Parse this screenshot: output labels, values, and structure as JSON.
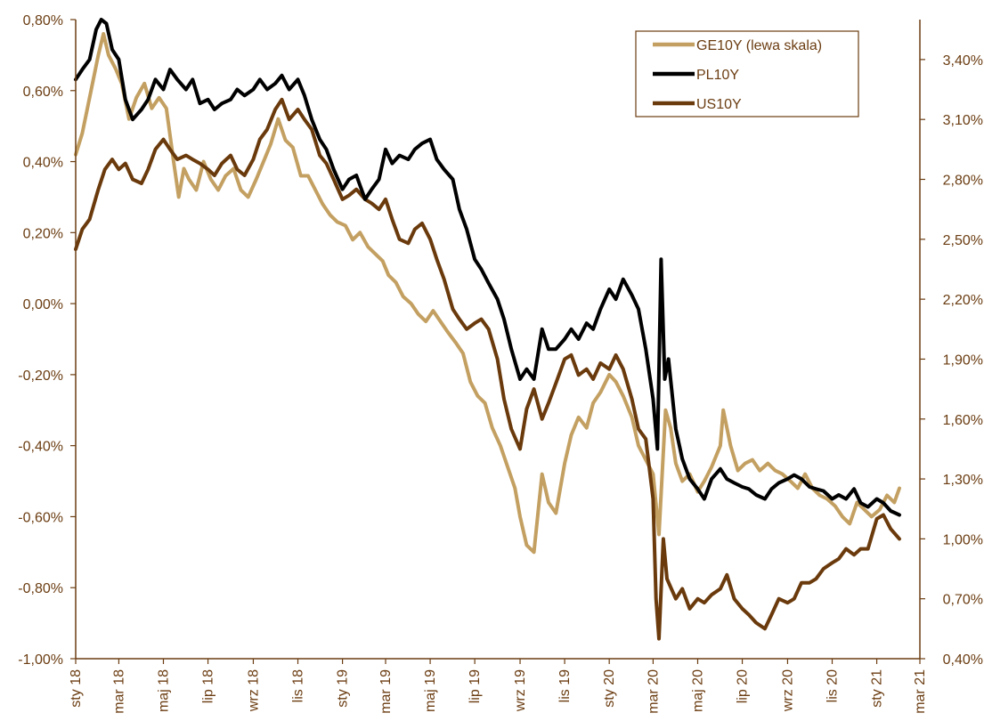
{
  "chart_data": {
    "type": "line",
    "title": "",
    "xlabel": "",
    "ylabel": "",
    "colors": {
      "GE10Y": "#c3a062",
      "PL10Y": "#000000",
      "US10Y": "#6a3a0c",
      "axis": "#6b3d12"
    },
    "grid": false,
    "legend_position": "top-right",
    "x_ticks": [
      "sty 18",
      "mar 18",
      "maj 18",
      "lip 18",
      "wrz 18",
      "lis 18",
      "sty 19",
      "mar 19",
      "maj 19",
      "lip 19",
      "wrz 19",
      "lis 19",
      "sty 20",
      "mar 20",
      "maj 20",
      "lip 20",
      "wrz 20",
      "lis 20",
      "sty 21",
      "mar 21"
    ],
    "left_axis": {
      "ylim": [
        -1.0,
        0.8
      ],
      "ticks": [
        0.8,
        0.6,
        0.4,
        0.2,
        0.0,
        -0.2,
        -0.4,
        -0.6,
        -0.8,
        -1.0
      ],
      "tick_labels": [
        "0,80%",
        "0,60%",
        "0,40%",
        "0,20%",
        "0,00%",
        "-0,20%",
        "-0,40%",
        "-0,60%",
        "-0,80%",
        "-1,00%"
      ]
    },
    "right_axis": {
      "ylim": [
        0.4,
        3.6
      ],
      "ticks": [
        3.4,
        3.1,
        2.8,
        2.5,
        2.2,
        1.9,
        1.6,
        1.3,
        1.0,
        0.7,
        0.4
      ],
      "tick_labels": [
        "3,40%",
        "3,10%",
        "2,80%",
        "2,50%",
        "2,20%",
        "1,90%",
        "1,60%",
        "1,30%",
        "1,00%",
        "0,70%",
        "0,40%"
      ]
    },
    "series": [
      {
        "name": "GE10Y (lewa skala)",
        "axis": "left",
        "x": [
          "2018-01-01",
          "2018-01-10",
          "2018-01-20",
          "2018-02-01",
          "2018-02-08",
          "2018-02-15",
          "2018-02-25",
          "2018-03-05",
          "2018-03-15",
          "2018-03-25",
          "2018-04-05",
          "2018-04-15",
          "2018-04-25",
          "2018-05-05",
          "2018-05-15",
          "2018-05-22",
          "2018-05-29",
          "2018-06-05",
          "2018-06-15",
          "2018-06-25",
          "2018-07-05",
          "2018-07-15",
          "2018-07-25",
          "2018-08-05",
          "2018-08-15",
          "2018-08-25",
          "2018-09-05",
          "2018-09-15",
          "2018-09-25",
          "2018-10-05",
          "2018-10-15",
          "2018-10-25",
          "2018-11-05",
          "2018-11-15",
          "2018-11-25",
          "2018-12-05",
          "2018-12-15",
          "2018-12-25",
          "2019-01-05",
          "2019-01-15",
          "2019-01-25",
          "2019-02-05",
          "2019-02-15",
          "2019-02-25",
          "2019-03-05",
          "2019-03-15",
          "2019-03-25",
          "2019-04-05",
          "2019-04-15",
          "2019-04-25",
          "2019-05-05",
          "2019-05-15",
          "2019-05-25",
          "2019-06-05",
          "2019-06-15",
          "2019-06-25",
          "2019-07-05",
          "2019-07-15",
          "2019-07-25",
          "2019-08-05",
          "2019-08-15",
          "2019-08-25",
          "2019-09-01",
          "2019-09-10",
          "2019-09-20",
          "2019-10-01",
          "2019-10-10",
          "2019-10-20",
          "2019-11-01",
          "2019-11-10",
          "2019-11-20",
          "2019-12-01",
          "2019-12-10",
          "2019-12-20",
          "2020-01-01",
          "2020-01-10",
          "2020-01-20",
          "2020-02-01",
          "2020-02-10",
          "2020-02-20",
          "2020-03-01",
          "2020-03-09",
          "2020-03-18",
          "2020-03-25",
          "2020-04-01",
          "2020-04-10",
          "2020-04-20",
          "2020-05-01",
          "2020-05-10",
          "2020-05-20",
          "2020-06-01",
          "2020-06-05",
          "2020-06-15",
          "2020-06-25",
          "2020-07-05",
          "2020-07-15",
          "2020-07-25",
          "2020-08-05",
          "2020-08-15",
          "2020-08-25",
          "2020-09-05",
          "2020-09-15",
          "2020-09-25",
          "2020-10-05",
          "2020-10-15",
          "2020-10-25",
          "2020-11-05",
          "2020-11-15",
          "2020-11-25",
          "2020-12-05",
          "2020-12-15",
          "2020-12-25",
          "2021-01-05",
          "2021-01-15",
          "2021-01-25",
          "2021-02-01"
        ],
        "values": [
          0.42,
          0.48,
          0.58,
          0.7,
          0.76,
          0.7,
          0.66,
          0.62,
          0.52,
          0.58,
          0.62,
          0.55,
          0.58,
          0.55,
          0.4,
          0.3,
          0.38,
          0.35,
          0.32,
          0.4,
          0.35,
          0.32,
          0.36,
          0.38,
          0.32,
          0.3,
          0.35,
          0.4,
          0.45,
          0.52,
          0.46,
          0.44,
          0.36,
          0.36,
          0.32,
          0.28,
          0.25,
          0.23,
          0.22,
          0.18,
          0.2,
          0.16,
          0.14,
          0.12,
          0.08,
          0.06,
          0.02,
          0.0,
          -0.03,
          -0.05,
          -0.02,
          -0.05,
          -0.08,
          -0.11,
          -0.14,
          -0.22,
          -0.26,
          -0.28,
          -0.35,
          -0.4,
          -0.46,
          -0.52,
          -0.6,
          -0.68,
          -0.7,
          -0.48,
          -0.56,
          -0.59,
          -0.45,
          -0.37,
          -0.32,
          -0.35,
          -0.28,
          -0.25,
          -0.2,
          -0.22,
          -0.26,
          -0.32,
          -0.4,
          -0.44,
          -0.48,
          -0.65,
          -0.3,
          -0.35,
          -0.45,
          -0.5,
          -0.48,
          -0.53,
          -0.5,
          -0.46,
          -0.4,
          -0.3,
          -0.4,
          -0.47,
          -0.45,
          -0.44,
          -0.47,
          -0.45,
          -0.47,
          -0.48,
          -0.5,
          -0.52,
          -0.48,
          -0.52,
          -0.54,
          -0.55,
          -0.57,
          -0.6,
          -0.62,
          -0.56,
          -0.58,
          -0.6,
          -0.58,
          -0.54,
          -0.56,
          -0.52
        ]
      },
      {
        "name": "PL10Y",
        "axis": "right",
        "x": [
          "2018-01-01",
          "2018-01-10",
          "2018-01-20",
          "2018-01-29",
          "2018-02-05",
          "2018-02-12",
          "2018-02-20",
          "2018-03-01",
          "2018-03-10",
          "2018-03-20",
          "2018-04-01",
          "2018-04-10",
          "2018-04-20",
          "2018-05-01",
          "2018-05-10",
          "2018-05-20",
          "2018-06-01",
          "2018-06-10",
          "2018-06-20",
          "2018-07-01",
          "2018-07-10",
          "2018-07-20",
          "2018-08-01",
          "2018-08-10",
          "2018-08-20",
          "2018-09-01",
          "2018-09-10",
          "2018-09-20",
          "2018-10-01",
          "2018-10-10",
          "2018-10-20",
          "2018-11-01",
          "2018-11-10",
          "2018-11-20",
          "2018-12-01",
          "2018-12-10",
          "2018-12-20",
          "2019-01-01",
          "2019-01-10",
          "2019-01-20",
          "2019-02-01",
          "2019-02-10",
          "2019-02-20",
          "2019-03-01",
          "2019-03-10",
          "2019-03-20",
          "2019-04-01",
          "2019-04-10",
          "2019-04-20",
          "2019-05-01",
          "2019-05-10",
          "2019-05-20",
          "2019-06-01",
          "2019-06-10",
          "2019-06-20",
          "2019-07-01",
          "2019-07-10",
          "2019-07-20",
          "2019-08-01",
          "2019-08-10",
          "2019-08-20",
          "2019-09-01",
          "2019-09-10",
          "2019-09-20",
          "2019-10-01",
          "2019-10-10",
          "2019-10-20",
          "2019-11-01",
          "2019-11-10",
          "2019-11-20",
          "2019-12-01",
          "2019-12-10",
          "2019-12-20",
          "2020-01-01",
          "2020-01-10",
          "2020-01-20",
          "2020-02-01",
          "2020-02-10",
          "2020-02-20",
          "2020-03-01",
          "2020-03-07",
          "2020-03-12",
          "2020-03-17",
          "2020-03-22",
          "2020-04-01",
          "2020-04-10",
          "2020-04-20",
          "2020-05-01",
          "2020-05-10",
          "2020-05-20",
          "2020-06-01",
          "2020-06-10",
          "2020-06-20",
          "2020-07-01",
          "2020-07-10",
          "2020-07-20",
          "2020-08-01",
          "2020-08-10",
          "2020-08-20",
          "2020-09-01",
          "2020-09-10",
          "2020-09-20",
          "2020-10-01",
          "2020-10-10",
          "2020-10-20",
          "2020-11-01",
          "2020-11-10",
          "2020-11-20",
          "2020-12-01",
          "2020-12-10",
          "2020-12-20",
          "2021-01-01",
          "2021-01-10",
          "2021-01-20",
          "2021-02-01"
        ],
        "values": [
          3.3,
          3.35,
          3.4,
          3.55,
          3.6,
          3.58,
          3.45,
          3.4,
          3.2,
          3.1,
          3.15,
          3.2,
          3.3,
          3.25,
          3.35,
          3.3,
          3.25,
          3.3,
          3.18,
          3.2,
          3.15,
          3.18,
          3.2,
          3.25,
          3.22,
          3.25,
          3.3,
          3.25,
          3.28,
          3.32,
          3.25,
          3.3,
          3.22,
          3.1,
          3.0,
          2.95,
          2.85,
          2.75,
          2.8,
          2.82,
          2.7,
          2.75,
          2.8,
          2.95,
          2.88,
          2.92,
          2.9,
          2.95,
          2.98,
          3.0,
          2.9,
          2.85,
          2.8,
          2.65,
          2.55,
          2.4,
          2.35,
          2.28,
          2.2,
          2.1,
          1.95,
          1.8,
          1.85,
          1.8,
          2.05,
          1.95,
          1.95,
          2.0,
          2.05,
          2.0,
          2.08,
          2.05,
          2.15,
          2.25,
          2.2,
          2.3,
          2.22,
          2.15,
          1.95,
          1.7,
          1.45,
          2.4,
          1.8,
          1.9,
          1.55,
          1.4,
          1.3,
          1.25,
          1.2,
          1.3,
          1.35,
          1.3,
          1.28,
          1.26,
          1.25,
          1.22,
          1.2,
          1.25,
          1.28,
          1.3,
          1.32,
          1.3,
          1.26,
          1.25,
          1.24,
          1.2,
          1.22,
          1.2,
          1.25,
          1.18,
          1.16,
          1.2,
          1.18,
          1.14,
          1.12
        ]
      },
      {
        "name": "US10Y",
        "axis": "right",
        "x": [
          "2018-01-01",
          "2018-01-10",
          "2018-01-20",
          "2018-02-01",
          "2018-02-10",
          "2018-02-20",
          "2018-03-01",
          "2018-03-10",
          "2018-03-20",
          "2018-04-01",
          "2018-04-10",
          "2018-04-20",
          "2018-05-01",
          "2018-05-10",
          "2018-05-20",
          "2018-06-01",
          "2018-06-10",
          "2018-06-20",
          "2018-07-01",
          "2018-07-10",
          "2018-07-20",
          "2018-08-01",
          "2018-08-10",
          "2018-08-20",
          "2018-09-01",
          "2018-09-10",
          "2018-09-20",
          "2018-10-01",
          "2018-10-10",
          "2018-10-20",
          "2018-11-01",
          "2018-11-10",
          "2018-11-20",
          "2018-12-01",
          "2018-12-10",
          "2018-12-20",
          "2019-01-01",
          "2019-01-10",
          "2019-01-20",
          "2019-02-01",
          "2019-02-10",
          "2019-02-20",
          "2019-03-01",
          "2019-03-10",
          "2019-03-20",
          "2019-04-01",
          "2019-04-10",
          "2019-04-20",
          "2019-05-01",
          "2019-05-10",
          "2019-05-20",
          "2019-06-01",
          "2019-06-10",
          "2019-06-20",
          "2019-07-01",
          "2019-07-10",
          "2019-07-20",
          "2019-08-01",
          "2019-08-10",
          "2019-08-20",
          "2019-09-01",
          "2019-09-10",
          "2019-09-20",
          "2019-10-01",
          "2019-10-10",
          "2019-10-20",
          "2019-11-01",
          "2019-11-10",
          "2019-11-20",
          "2019-12-01",
          "2019-12-10",
          "2019-12-20",
          "2020-01-01",
          "2020-01-10",
          "2020-01-20",
          "2020-02-01",
          "2020-02-10",
          "2020-02-20",
          "2020-03-01",
          "2020-03-05",
          "2020-03-09",
          "2020-03-15",
          "2020-03-20",
          "2020-04-01",
          "2020-04-10",
          "2020-04-20",
          "2020-05-01",
          "2020-05-10",
          "2020-05-20",
          "2020-06-01",
          "2020-06-10",
          "2020-06-20",
          "2020-07-01",
          "2020-07-10",
          "2020-07-20",
          "2020-08-01",
          "2020-08-10",
          "2020-08-20",
          "2020-09-01",
          "2020-09-10",
          "2020-09-20",
          "2020-10-01",
          "2020-10-10",
          "2020-10-20",
          "2020-11-01",
          "2020-11-10",
          "2020-11-20",
          "2020-12-01",
          "2020-12-10",
          "2020-12-20",
          "2021-01-01",
          "2021-01-10",
          "2021-01-20",
          "2021-02-01"
        ],
        "values": [
          2.45,
          2.55,
          2.6,
          2.75,
          2.85,
          2.9,
          2.85,
          2.88,
          2.8,
          2.78,
          2.85,
          2.95,
          3.0,
          2.95,
          2.9,
          2.92,
          2.9,
          2.88,
          2.85,
          2.82,
          2.88,
          2.92,
          2.85,
          2.82,
          2.9,
          3.0,
          3.05,
          3.15,
          3.2,
          3.1,
          3.15,
          3.1,
          3.05,
          2.92,
          2.88,
          2.8,
          2.7,
          2.72,
          2.75,
          2.7,
          2.68,
          2.65,
          2.7,
          2.6,
          2.5,
          2.48,
          2.55,
          2.58,
          2.5,
          2.4,
          2.3,
          2.15,
          2.1,
          2.05,
          2.08,
          2.1,
          2.05,
          1.9,
          1.7,
          1.55,
          1.45,
          1.65,
          1.75,
          1.6,
          1.68,
          1.78,
          1.9,
          1.92,
          1.82,
          1.85,
          1.8,
          1.88,
          1.85,
          1.92,
          1.85,
          1.7,
          1.55,
          1.5,
          1.2,
          0.7,
          0.5,
          1.0,
          0.8,
          0.7,
          0.75,
          0.65,
          0.7,
          0.68,
          0.72,
          0.75,
          0.82,
          0.7,
          0.65,
          0.62,
          0.58,
          0.55,
          0.62,
          0.7,
          0.68,
          0.7,
          0.78,
          0.78,
          0.8,
          0.85,
          0.88,
          0.9,
          0.95,
          0.92,
          0.95,
          0.95,
          1.1,
          1.12,
          1.05,
          1.0
        ]
      }
    ]
  }
}
